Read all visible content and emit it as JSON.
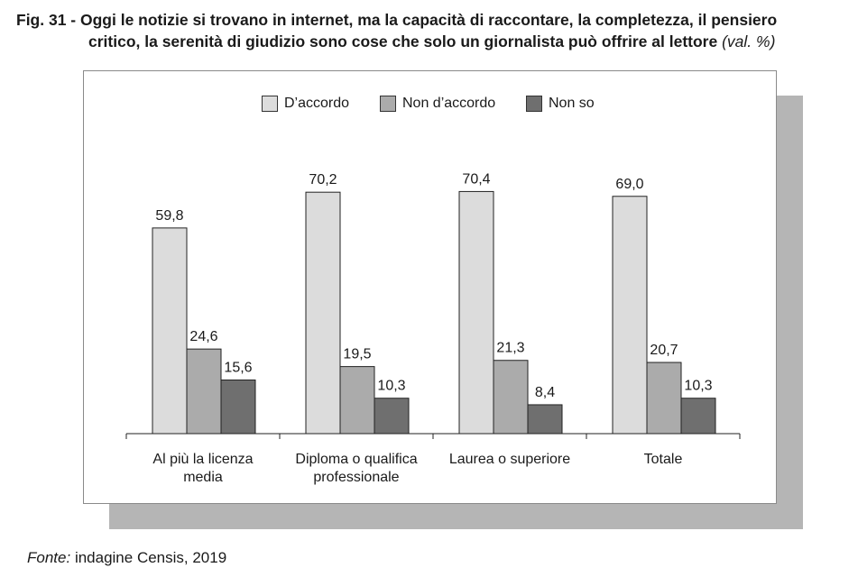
{
  "figure": {
    "number": "Fig. 31 -",
    "title_line1": "Oggi le notizie si trovano in internet, ma la capacità di raccontare, la completezza, il pensiero",
    "title_line2": "critico, la serenità di giudizio sono cose che solo un giornalista può offrire al lettore",
    "unit": "(val. %)"
  },
  "source": {
    "label": "Fonte:",
    "text": "indagine Censis, 2019"
  },
  "chart_data": {
    "type": "bar",
    "categories": [
      [
        "Al più la licenza",
        "media"
      ],
      [
        "Diploma o qualifica",
        "professionale"
      ],
      [
        "Laurea o superiore"
      ],
      [
        "Totale"
      ]
    ],
    "series": [
      {
        "name": "D’accordo",
        "values": [
          59.8,
          70.2,
          70.4,
          69.0
        ],
        "labels": [
          "59,8",
          "70,2",
          "70,4",
          "69,0"
        ],
        "color": "#dcdcdc"
      },
      {
        "name": "Non d’accordo",
        "values": [
          24.6,
          19.5,
          21.3,
          20.7
        ],
        "labels": [
          "24,6",
          "19,5",
          "21,3",
          "20,7"
        ],
        "color": "#ababab"
      },
      {
        "name": "Non so",
        "values": [
          15.6,
          10.3,
          8.4,
          10.3
        ],
        "labels": [
          "15,6",
          "10,3",
          "8,4",
          "10,3"
        ],
        "color": "#6f6f6f"
      }
    ],
    "ylim": [
      0,
      100
    ],
    "legend_position": "top",
    "grid": false
  }
}
